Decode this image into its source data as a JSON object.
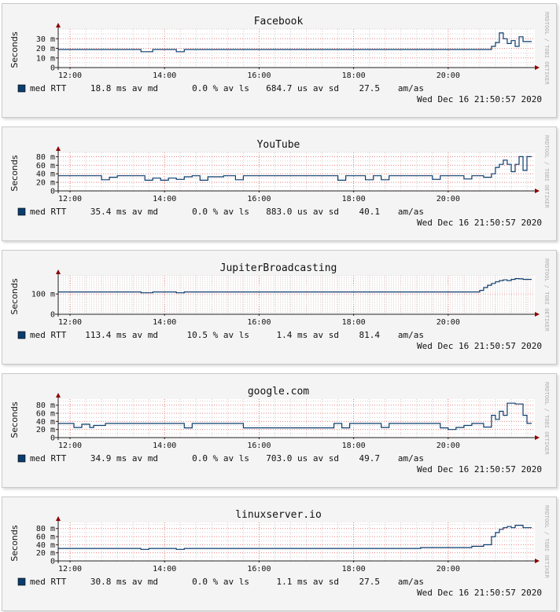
{
  "colors": {
    "line": "#0b3d6e",
    "area": "#a8c8e6",
    "grid_minor": "#d7c6c6",
    "grid_major": "#e05555",
    "axis": "#222222",
    "arrow": "#8b0000",
    "swatch": "#0b3d6e"
  },
  "watermark": "RRDTOOL / TOBI OETIKER",
  "timestamp": "Wed Dec 16 21:50:57 2020",
  "x_ticks": [
    "12:00",
    "14:00",
    "16:00",
    "18:00",
    "20:00"
  ],
  "y_axis_label": "Seconds",
  "chart_data": [
    {
      "type": "line",
      "title": "Facebook",
      "ylabel": "Seconds",
      "xlim": [
        "11:45",
        "21:50"
      ],
      "ylim": [
        0,
        40
      ],
      "y_ticks": [
        {
          "value": 0,
          "label": "0"
        },
        {
          "value": 10,
          "label": "10 m"
        },
        {
          "value": 20,
          "label": "20 m"
        },
        {
          "value": 30,
          "label": "30 m"
        }
      ],
      "grid": true,
      "legend": {
        "label": "med RTT",
        "stats": [
          "18.8 ms av md",
          "0.0 % av ls",
          "684.7 us av sd",
          "27.5",
          "am/as"
        ]
      },
      "series": [
        {
          "name": "med RTT",
          "x": [
            "11:45",
            "13:30",
            "13:45",
            "14:15",
            "14:25",
            "20:45",
            "20:55",
            "21:00",
            "21:05",
            "21:10",
            "21:15",
            "21:20",
            "21:25",
            "21:30",
            "21:35",
            "21:40"
          ],
          "y": [
            18.8,
            16.5,
            18.8,
            16.5,
            18.8,
            18.8,
            22,
            26,
            36,
            30,
            25,
            28,
            22,
            32,
            27,
            27
          ]
        }
      ]
    },
    {
      "type": "line",
      "title": "YouTube",
      "ylabel": "Seconds",
      "xlim": [
        "11:45",
        "21:50"
      ],
      "ylim": [
        0,
        90
      ],
      "y_ticks": [
        {
          "value": 0,
          "label": "0"
        },
        {
          "value": 20,
          "label": "20 m"
        },
        {
          "value": 40,
          "label": "40 m"
        },
        {
          "value": 60,
          "label": "60 m"
        },
        {
          "value": 80,
          "label": "80 m"
        }
      ],
      "grid": true,
      "legend": {
        "label": "med RTT",
        "stats": [
          "35.4 ms av md",
          "0.0 % av ls",
          "883.0 us av sd",
          "40.1",
          "am/as"
        ]
      },
      "series": [
        {
          "name": "med RTT",
          "x": [
            "11:45",
            "12:40",
            "12:50",
            "13:00",
            "13:35",
            "13:45",
            "13:55",
            "14:05",
            "14:15",
            "14:25",
            "14:35",
            "14:45",
            "14:55",
            "15:15",
            "15:30",
            "15:40",
            "17:30",
            "17:40",
            "17:50",
            "18:05",
            "18:15",
            "18:25",
            "18:35",
            "18:45",
            "19:30",
            "19:40",
            "19:50",
            "20:20",
            "20:30",
            "20:45",
            "20:55",
            "21:00",
            "21:05",
            "21:10",
            "21:15",
            "21:20",
            "21:25",
            "21:30",
            "21:35",
            "21:40"
          ],
          "y": [
            35.4,
            26,
            32,
            35.4,
            25,
            30,
            25,
            30,
            27,
            33,
            35.4,
            25,
            33,
            35.4,
            26,
            35.4,
            35.4,
            25,
            35.4,
            35.4,
            26,
            35.4,
            26,
            35.4,
            35.4,
            27,
            35.4,
            28,
            35.4,
            32,
            40,
            55,
            62,
            72,
            62,
            45,
            62,
            80,
            48,
            80
          ]
        }
      ]
    },
    {
      "type": "line",
      "title": "JupiterBroadcasting",
      "ylabel": "Seconds",
      "xlim": [
        "11:45",
        "21:50"
      ],
      "ylim": [
        0,
        190
      ],
      "y_ticks": [
        {
          "value": 0,
          "label": "0"
        },
        {
          "value": 100,
          "label": "100 m"
        }
      ],
      "grid": true,
      "legend": {
        "label": "med RTT",
        "stats": [
          "113.4 ms av md",
          "10.5 % av ls",
          "1.4 ms av sd",
          "81.4",
          "am/as"
        ]
      },
      "series": [
        {
          "name": "med RTT",
          "x": [
            "11:45",
            "13:30",
            "13:45",
            "14:15",
            "14:25",
            "20:35",
            "20:40",
            "20:45",
            "20:50",
            "20:55",
            "21:00",
            "21:05",
            "21:10",
            "21:15",
            "21:20",
            "21:25",
            "21:30",
            "21:35",
            "21:40"
          ],
          "y": [
            110,
            106,
            110,
            106,
            110,
            110,
            118,
            132,
            143,
            152,
            160,
            166,
            170,
            166,
            172,
            176,
            175,
            172,
            172
          ]
        }
      ]
    },
    {
      "type": "line",
      "title": "google.com",
      "ylabel": "Seconds",
      "xlim": [
        "11:45",
        "21:50"
      ],
      "ylim": [
        0,
        95
      ],
      "y_ticks": [
        {
          "value": 0,
          "label": "0"
        },
        {
          "value": 20,
          "label": "20 m"
        },
        {
          "value": 40,
          "label": "40 m"
        },
        {
          "value": 60,
          "label": "60 m"
        },
        {
          "value": 80,
          "label": "80 m"
        }
      ],
      "grid": true,
      "legend": {
        "label": "med RTT",
        "stats": [
          "34.9 ms av md",
          "0.0 % av ls",
          "703.0 us av sd",
          "49.7",
          "am/as"
        ]
      },
      "series": [
        {
          "name": "med RTT",
          "x": [
            "11:45",
            "12:05",
            "12:15",
            "12:25",
            "12:30",
            "12:45",
            "14:15",
            "14:25",
            "14:35",
            "15:30",
            "15:40",
            "17:35",
            "17:45",
            "17:55",
            "18:05",
            "18:35",
            "18:45",
            "18:55",
            "19:50",
            "20:00",
            "20:10",
            "20:20",
            "20:30",
            "20:45",
            "20:55",
            "21:00",
            "21:05",
            "21:10",
            "21:15",
            "21:20",
            "21:25",
            "21:35",
            "21:40"
          ],
          "y": [
            34.9,
            25,
            33,
            25,
            30,
            34.9,
            34.9,
            24,
            34.9,
            34.9,
            24,
            34.9,
            24,
            34.9,
            34.9,
            25,
            34.9,
            34.9,
            24,
            20,
            25,
            30,
            34.9,
            26,
            55,
            45,
            65,
            55,
            85,
            85,
            83,
            55,
            35
          ]
        }
      ]
    },
    {
      "type": "line",
      "title": "linuxserver.io",
      "ylabel": "Seconds",
      "xlim": [
        "11:45",
        "21:50"
      ],
      "ylim": [
        0,
        95
      ],
      "y_ticks": [
        {
          "value": 0,
          "label": "0"
        },
        {
          "value": 20,
          "label": "20 m"
        },
        {
          "value": 40,
          "label": "40 m"
        },
        {
          "value": 60,
          "label": "60 m"
        },
        {
          "value": 80,
          "label": "80 m"
        }
      ],
      "grid": true,
      "legend": {
        "label": "med RTT",
        "stats": [
          "30.8 ms av md",
          "0.0 % av ls",
          "1.1 ms av sd",
          "27.5",
          "am/as"
        ]
      },
      "series": [
        {
          "name": "med RTT",
          "x": [
            "11:45",
            "13:30",
            "13:40",
            "14:15",
            "14:25",
            "19:15",
            "19:25",
            "20:20",
            "20:30",
            "20:45",
            "20:55",
            "21:00",
            "21:05",
            "21:10",
            "21:15",
            "21:20",
            "21:25",
            "21:30",
            "21:35",
            "21:40"
          ],
          "y": [
            30.8,
            28.5,
            30.8,
            28.5,
            30.8,
            30.8,
            33,
            33,
            36,
            40,
            60,
            70,
            78,
            82,
            85,
            82,
            88,
            88,
            82,
            82
          ]
        }
      ]
    }
  ]
}
